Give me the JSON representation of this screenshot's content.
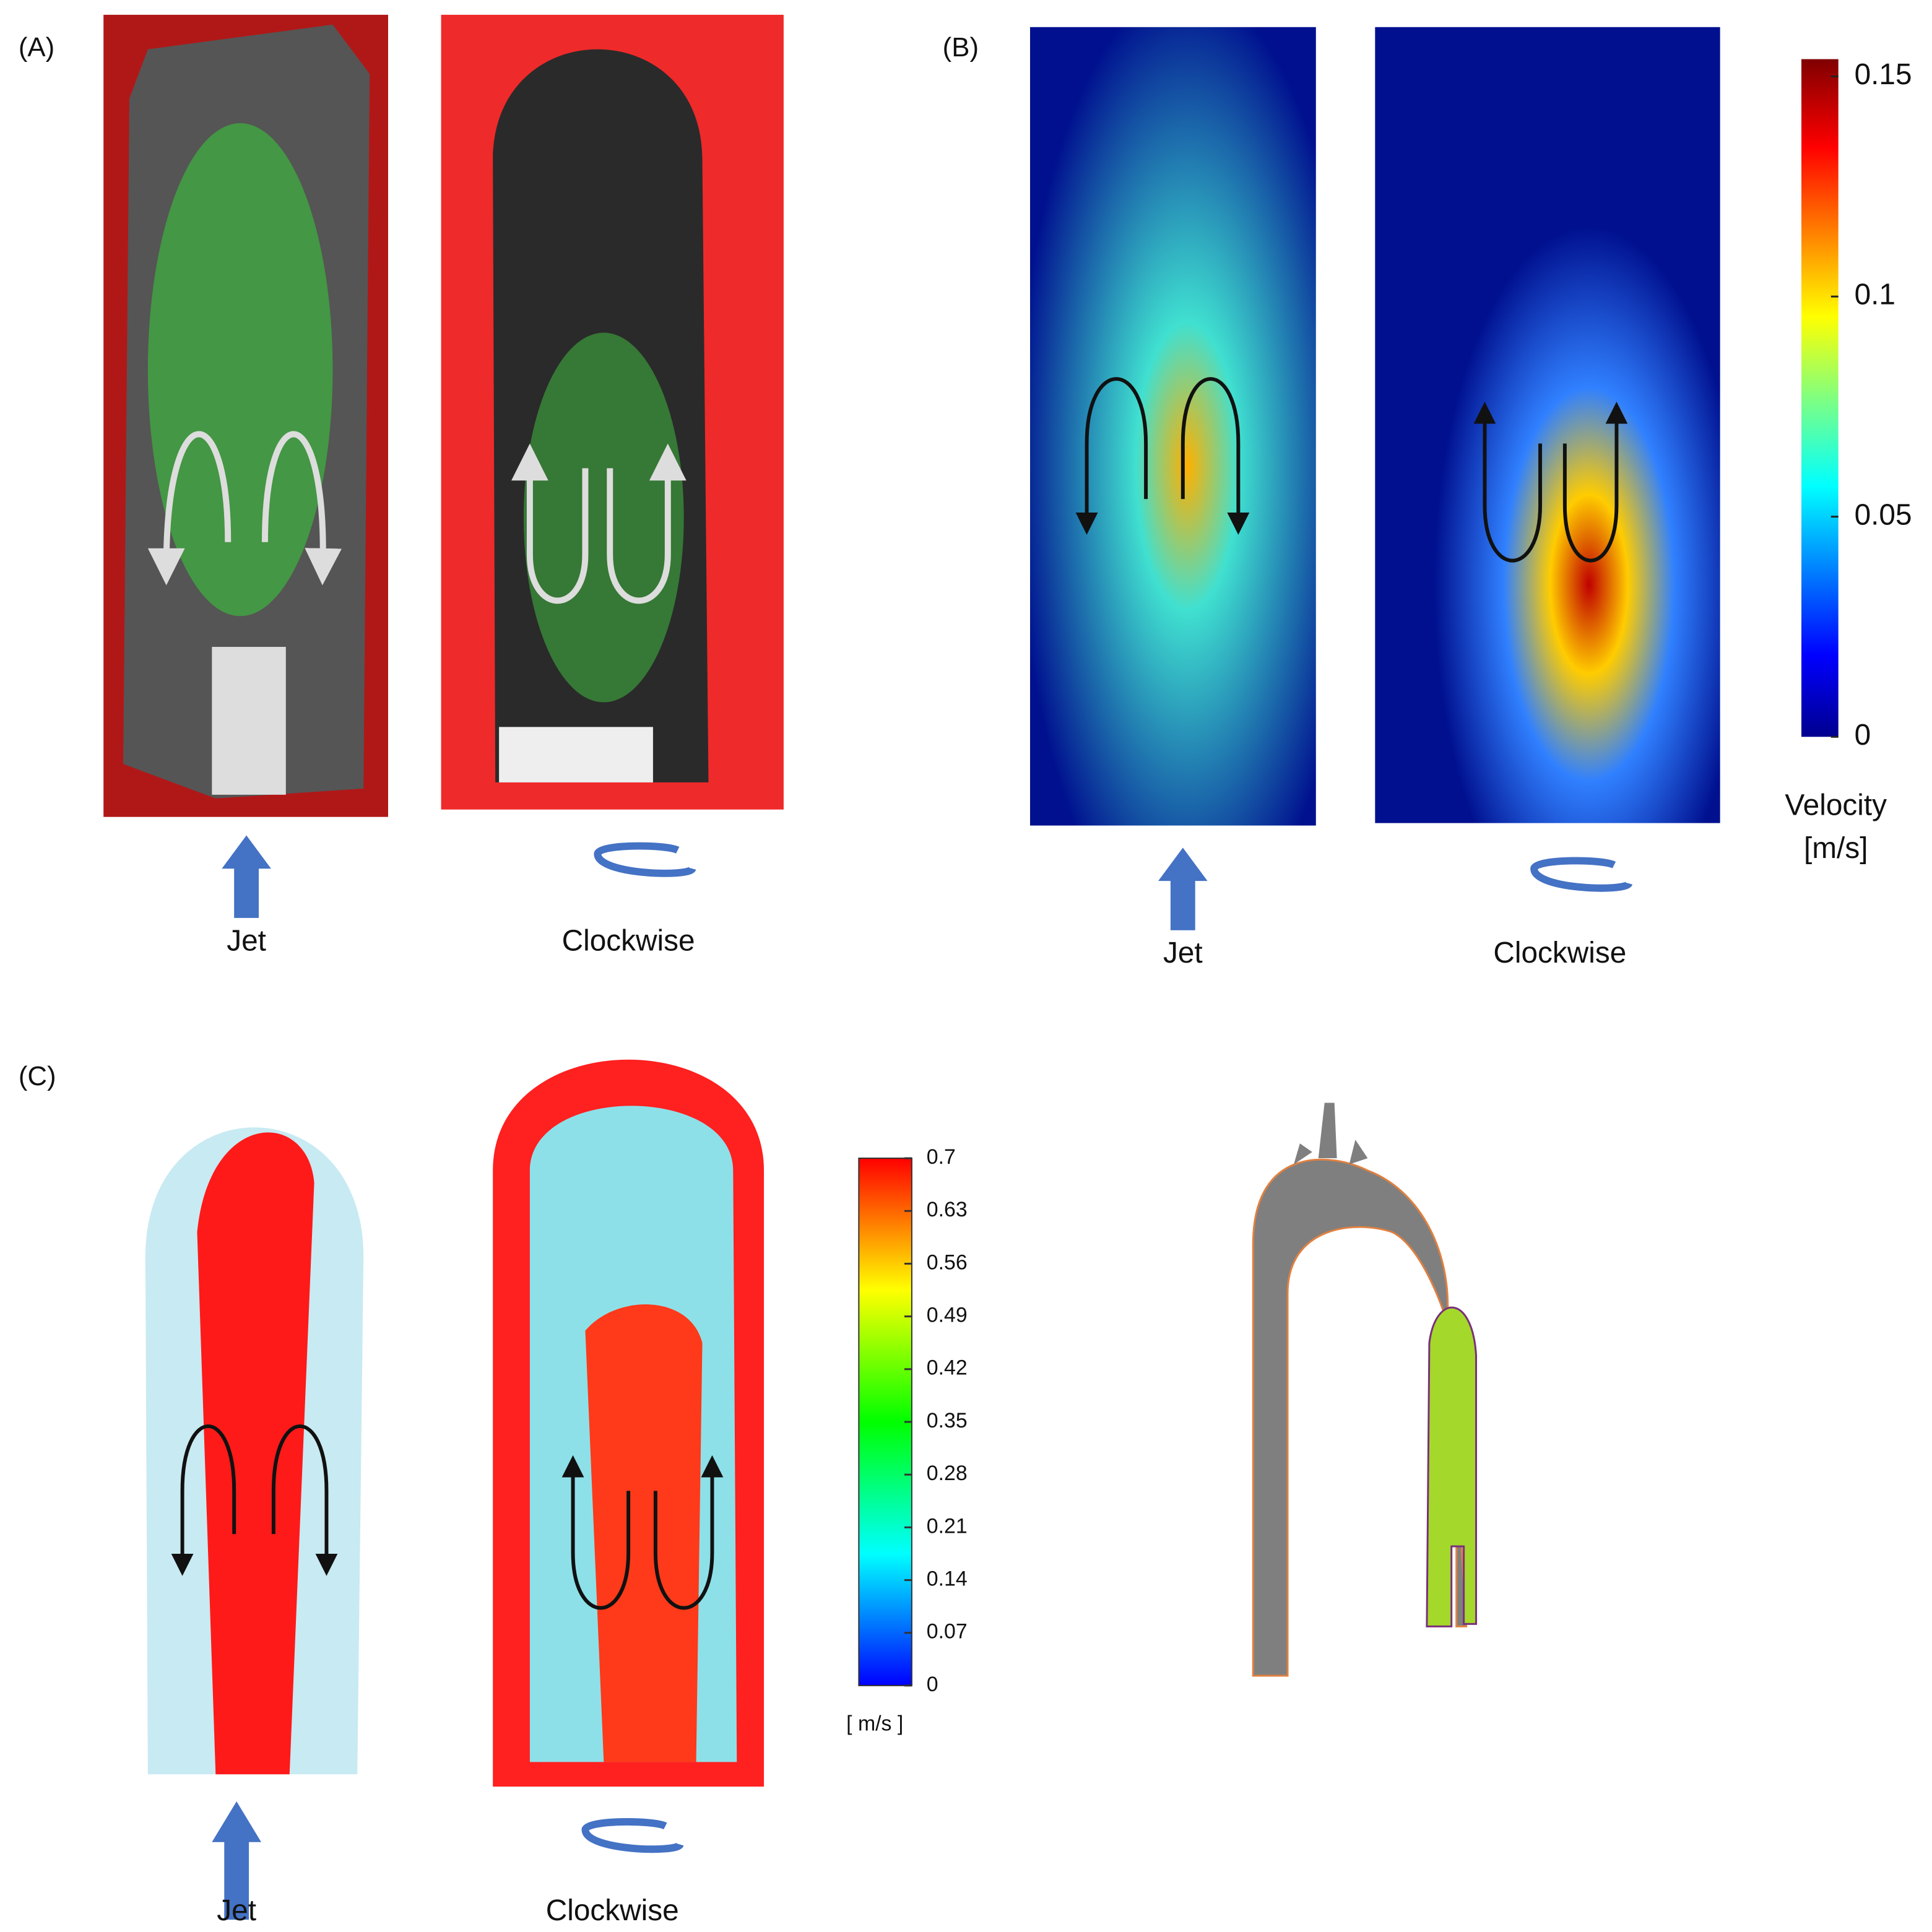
{
  "panels": [
    {
      "label": "(A)",
      "captions": [
        "Jet",
        "Clockwise"
      ]
    },
    {
      "label": "(B)",
      "captions": [
        "Jet",
        "Clockwise"
      ]
    },
    {
      "label": "(C)",
      "captions": [
        "Jet",
        "Clockwise"
      ]
    }
  ],
  "colorbar_b": {
    "title": "Velocity",
    "unit": "[m/s]",
    "range": [
      0,
      0.15
    ],
    "ticks": [
      0,
      0.05,
      0.1,
      0.15
    ]
  },
  "colorbar_c": {
    "unit": "[ m/s ]",
    "range": [
      0,
      0.7
    ],
    "ticks": [
      0,
      0.07,
      0.14,
      0.21,
      0.28,
      0.35,
      0.42,
      0.49,
      0.56,
      0.63,
      0.7
    ]
  }
}
